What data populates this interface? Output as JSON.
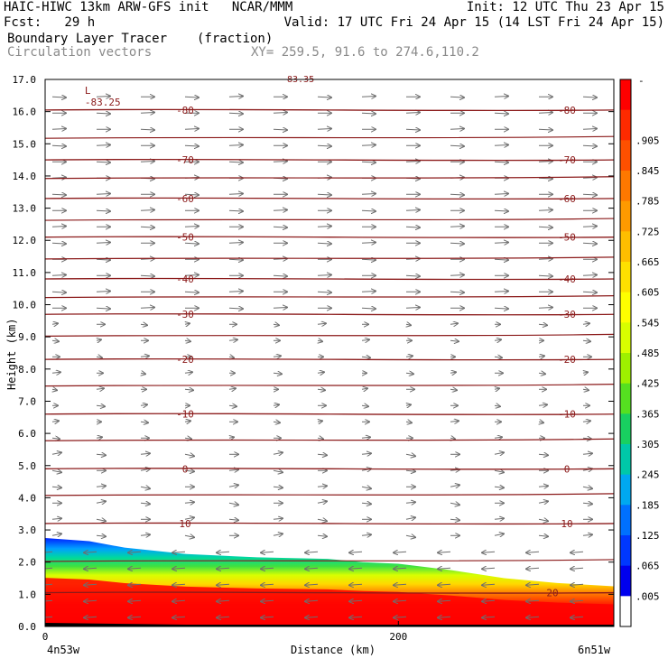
{
  "header": {
    "line1_left": "HAIC-HIWC 13km ARW-GFS init   NCAR/MMM",
    "line1_right": "Init: 12 UTC Thu 23 Apr 15",
    "line2_left": "Fcst:   29 h",
    "line2_right": "Valid: 17 UTC Fri 24 Apr 15 (14 LST Fri 24 Apr 15)",
    "line3_left": "Boundary Layer Tracer",
    "line3_units": "(fraction)",
    "line4_left": "Circulation vectors",
    "line4_xy": "XY= 259.5, 91.6 to 274.6,110.2"
  },
  "chart_data": {
    "type": "heatmap",
    "xlabel": "Distance (km)",
    "ylabel": "Height (km)",
    "xlim": [
      0,
      322
    ],
    "ylim": [
      0,
      17
    ],
    "x_ticks": [
      0,
      200
    ],
    "x_end_labels": {
      "left": "4n53w",
      "right": "6n51w"
    },
    "y_ticks": [
      "0.0",
      "1.0",
      "2.0",
      "3.0",
      "4.0",
      "5.0",
      "6.0",
      "7.0",
      "8.0",
      "9.0",
      "10.0",
      "11.0",
      "12.0",
      "13.0",
      "14.0",
      "15.0",
      "16.0",
      "17.0"
    ],
    "tracer_top_km": [
      [
        0,
        2.75
      ],
      [
        25,
        2.65
      ],
      [
        45,
        2.45
      ],
      [
        80,
        2.25
      ],
      [
        120,
        2.15
      ],
      [
        160,
        2.1
      ],
      [
        180,
        2.0
      ],
      [
        200,
        1.95
      ],
      [
        230,
        1.75
      ],
      [
        260,
        1.5
      ],
      [
        290,
        1.35
      ],
      [
        322,
        1.25
      ]
    ],
    "temperature_contours": [
      {
        "label": "-80",
        "y_km": 16.05
      },
      {
        "label": "-70",
        "y_km": 14.5
      },
      {
        "label": "-60",
        "y_km": 13.3
      },
      {
        "label": "-50",
        "y_km": 12.1
      },
      {
        "label": "-40",
        "y_km": 10.8
      },
      {
        "label": "-30",
        "y_km": 9.7
      },
      {
        "label": "-20",
        "y_km": 8.3
      },
      {
        "label": "-10",
        "y_km": 6.6
      },
      {
        "label": "0",
        "y_km": 4.9
      },
      {
        "label": "10",
        "y_km": 3.2
      },
      {
        "label": "20",
        "y_km": 1.05
      }
    ],
    "extra_contour_levels_km": [
      15.2,
      13.95,
      12.65,
      11.45,
      10.25,
      9.05,
      7.5,
      5.8,
      4.1,
      2.05
    ],
    "min_label": {
      "marker": "L",
      "value": "-83.25",
      "x_km": 25,
      "y_km": 16.5
    },
    "top_cut_label": "83.35",
    "colorbar": {
      "labels": [
        ".905",
        ".845",
        ".785",
        ".725",
        ".665",
        ".605",
        ".545",
        ".485",
        ".425",
        ".365",
        ".305",
        ".245",
        ".185",
        ".125",
        ".065",
        ".005"
      ],
      "top_label": "-",
      "colors": [
        "#ff0000",
        "#ff2a00",
        "#ff5000",
        "#ff7800",
        "#ff9a00",
        "#ffbe00",
        "#ffe000",
        "#ffff00",
        "#d8ff00",
        "#9ef000",
        "#55e020",
        "#18d060",
        "#00c8a8",
        "#00a8f0",
        "#0070ff",
        "#0038ff",
        "#0000ee",
        "#ffffff"
      ]
    }
  }
}
